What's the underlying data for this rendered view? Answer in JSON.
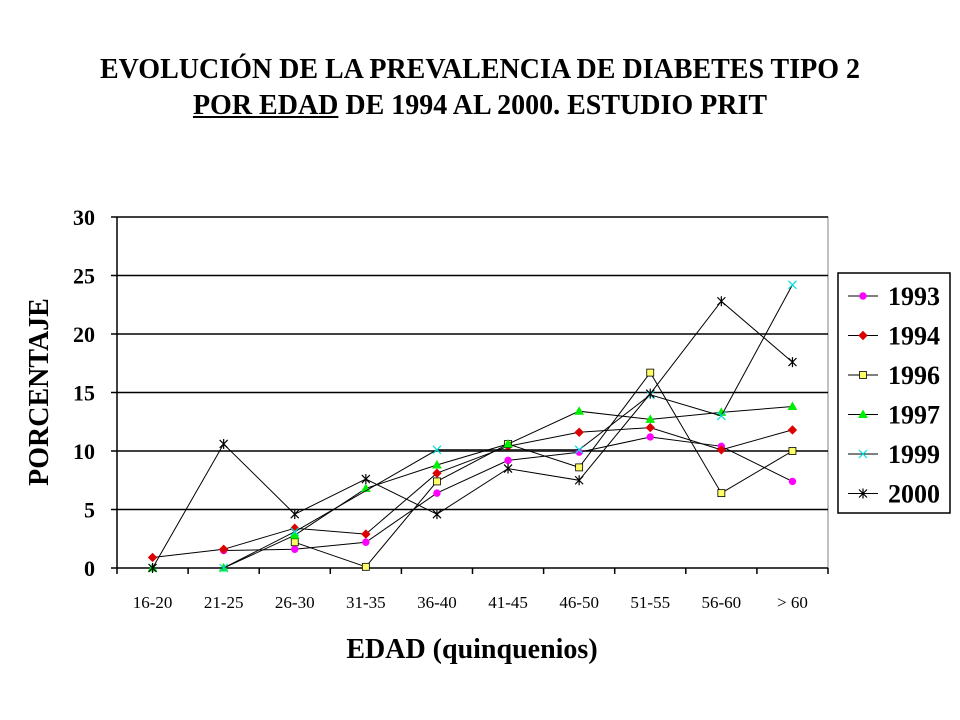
{
  "chart_data": {
    "type": "line",
    "title_line1": "EVOLUCIÓN DE LA PREVALENCIA DE DIABETES TIPO 2",
    "title_line2_underlined": "POR EDAD",
    "title_line2_rest": " DE 1994 AL 2000. ESTUDIO PRIT",
    "xlabel": "EDAD (quinquenios)",
    "ylabel": "PORCENTAJE",
    "ylim": [
      0,
      30
    ],
    "yticks": [
      "0",
      "5",
      "10",
      "15",
      "20",
      "25",
      "30"
    ],
    "grid": true,
    "legend_position": "right",
    "categories": [
      "16-20",
      "21-25",
      "26-30",
      "31-35",
      "36-40",
      "41-45",
      "46-50",
      "51-55",
      "56-60",
      "> 60"
    ],
    "series": [
      {
        "name": "1993",
        "color": "#ff00ff",
        "marker": "circle",
        "values": [
          null,
          1.5,
          1.6,
          2.2,
          6.4,
          9.2,
          9.9,
          11.2,
          10.4,
          7.4
        ]
      },
      {
        "name": "1994",
        "color": "#dd0000",
        "marker": "diamond",
        "values": [
          0.9,
          1.6,
          3.4,
          2.9,
          8.1,
          10.4,
          11.6,
          12.0,
          10.1,
          11.8
        ]
      },
      {
        "name": "1996",
        "color": "#ffff66",
        "marker": "square",
        "values": [
          null,
          null,
          2.2,
          0.1,
          7.4,
          10.6,
          8.6,
          16.7,
          6.4,
          10.0
        ]
      },
      {
        "name": "1997",
        "color": "#00ee00",
        "marker": "triangle",
        "values": [
          0.0,
          0.0,
          2.8,
          6.8,
          8.8,
          10.6,
          13.4,
          12.7,
          13.3,
          13.8
        ]
      },
      {
        "name": "1999",
        "color": "#00dddd",
        "marker": "x",
        "values": [
          0.0,
          0.0,
          3.1,
          null,
          10.1,
          null,
          10.1,
          14.8,
          13.0,
          24.2
        ]
      },
      {
        "name": "2000",
        "color": "#000000",
        "marker": "star",
        "values": [
          0.0,
          10.6,
          4.6,
          7.6,
          4.6,
          8.5,
          7.5,
          14.9,
          22.8,
          17.6
        ]
      }
    ]
  }
}
